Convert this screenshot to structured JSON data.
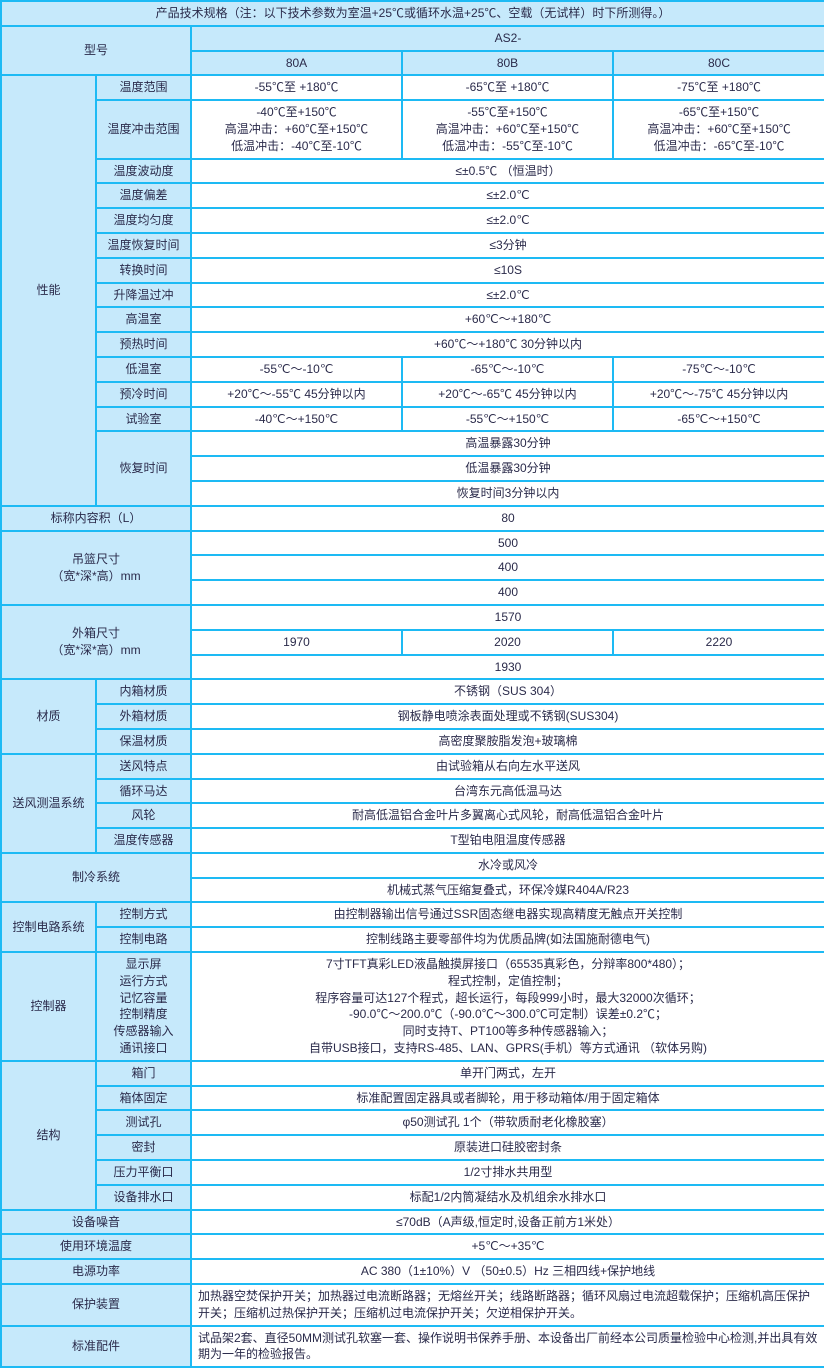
{
  "title": "产品技术规格（注：以下技术参数为室温+25℃或循环水温+25℃、空载（无试样）时下所测得。）",
  "model_label": "型号",
  "series": "AS2-",
  "models": [
    "80A",
    "80B",
    "80C"
  ],
  "perf_label": "性能",
  "rows": {
    "temp_range": {
      "label": "温度范围",
      "vals": [
        "-55℃至 +180℃",
        "-65℃至 +180℃",
        "-75℃至 +180℃"
      ]
    },
    "shock_range": {
      "label": "温度冲击范围",
      "vals": [
        "-40℃至+150℃\n高温冲击：+60℃至+150℃\n低温冲击：-40℃至-10℃",
        "-55℃至+150℃\n高温冲击：+60℃至+150℃\n低温冲击：-55℃至-10℃",
        "-65℃至+150℃\n高温冲击：+60℃至+150℃\n低温冲击：-65℃至-10℃"
      ]
    },
    "fluctuation": {
      "label": "温度波动度",
      "val": "≤±0.5℃ （恒温时）"
    },
    "deviation": {
      "label": "温度偏差",
      "val": "≤±2.0℃"
    },
    "uniformity": {
      "label": "温度均匀度",
      "val": "≤±2.0℃"
    },
    "recovery_time": {
      "label": "温度恢复时间",
      "val": "≤3分钟"
    },
    "switch_time": {
      "label": "转换时间",
      "val": "≤10S"
    },
    "overshoot": {
      "label": "升降温过冲",
      "val": "≤±2.0℃"
    },
    "high_chamber": {
      "label": "高温室",
      "val": "+60℃～+180℃"
    },
    "preheat": {
      "label": "预热时间",
      "val": "+60℃～+180℃ 30分钟以内"
    },
    "low_chamber": {
      "label": "低温室",
      "vals": [
        "-55℃～-10℃",
        "-65℃～-10℃",
        "-75℃～-10℃"
      ]
    },
    "precool": {
      "label": "预冷时间",
      "vals": [
        "+20℃～-55℃ 45分钟以内",
        "+20℃～-65℃ 45分钟以内",
        "+20℃～-75℃ 45分钟以内"
      ]
    },
    "test_chamber": {
      "label": "试验室",
      "vals": [
        "-40℃～+150℃",
        "-55℃～+150℃",
        "-65℃～+150℃"
      ]
    },
    "recover": {
      "label": "恢复时间",
      "vals": [
        "高温暴露30分钟",
        "低温暴露30分钟",
        "恢复时间3分钟以内"
      ]
    }
  },
  "nominal_vol": {
    "label": "标称内容积（L）",
    "val": "80"
  },
  "basket": {
    "label": "吊篮尺寸\n（宽*深*高）mm",
    "vals": [
      "500",
      "400",
      "400"
    ]
  },
  "outer": {
    "label": "外箱尺寸\n（宽*深*高）mm",
    "row1": "1570",
    "row2": [
      "1970",
      "2020",
      "2220"
    ],
    "row3": "1930"
  },
  "material": {
    "label": "材质",
    "inner": {
      "label": "内箱材质",
      "val": "不锈钢（SUS 304）"
    },
    "outer": {
      "label": "外箱材质",
      "val": "钢板静电喷涂表面处理或不锈钢(SUS304)"
    },
    "insul": {
      "label": "保温材质",
      "val": "高密度聚胺脂发泡+玻璃棉"
    }
  },
  "air": {
    "label": "送风测温系统",
    "feat": {
      "label": "送风特点",
      "val": "由试验箱从右向左水平送风"
    },
    "motor": {
      "label": "循环马达",
      "val": "台湾东元高低温马达"
    },
    "fan": {
      "label": "风轮",
      "val": "耐高低温铝合金叶片多翼离心式风轮，耐高低温铝合金叶片"
    },
    "sensor": {
      "label": "温度传感器",
      "val": "T型铂电阻温度传感器"
    }
  },
  "cooling": {
    "label": "制冷系统",
    "vals": [
      "水冷或风冷",
      "机械式蒸气压缩复叠式，环保冷媒R404A/R23"
    ]
  },
  "ctrl_circuit": {
    "label": "控制电路系统",
    "method": {
      "label": "控制方式",
      "val": "由控制器输出信号通过SSR固态继电器实现高精度无触点开关控制"
    },
    "circuit": {
      "label": "控制电路",
      "val": "控制线路主要零部件均为优质品牌(如法国施耐德电气)"
    }
  },
  "controller": {
    "label": "控制器",
    "sublabel": "显示屏\n运行方式\n记忆容量\n控制精度\n传感器输入\n通讯接口",
    "val": "7寸TFT真彩LED液晶触摸屏接口（65535真彩色，分辩率800*480）；\n程式控制，定值控制；\n程序容量可达127个程式，超长运行，每段999小时，最大32000次循环；\n-90.0℃～200.0℃（-90.0℃～300.0℃可定制）误差±0.2℃；\n同时支持T、PT100等多种传感器输入；\n自带USB接口，支持RS-485、LAN、GPRS(手机）等方式通讯 （软体另购)"
  },
  "structure": {
    "label": "结构",
    "door": {
      "label": "箱门",
      "val": "单开门两式，左开"
    },
    "fix": {
      "label": "箱体固定",
      "val": "标准配置固定器具或者脚轮，用于移动箱体/用于固定箱体"
    },
    "hole": {
      "label": "测试孔",
      "val": "φ50测试孔 1个（带软质耐老化橡胶塞）"
    },
    "seal": {
      "label": "密封",
      "val": "原装进口硅胶密封条"
    },
    "balance": {
      "label": "压力平衡口",
      "val": "1/2寸排水共用型"
    },
    "drain": {
      "label": "设备排水口",
      "val": "标配1/2内筒凝结水及机组余水排水口"
    }
  },
  "noise": {
    "label": "设备噪音",
    "val": "≤70dB（A声级,恒定时,设备正前方1米处）"
  },
  "env_temp": {
    "label": "使用环境温度",
    "val": "+5℃～+35℃"
  },
  "power": {
    "label": "电源功率",
    "val": "AC 380（1±10%）V （50±0.5）Hz 三相四线+保护地线"
  },
  "protection": {
    "label": "保护装置",
    "val": "加热器空焚保护开关；加热器过电流断路器；无熔丝开关；线路断路器；循环风扇过电流超载保护；压缩机高压保护开关；压缩机过热保护开关；压缩机过电流保护开关；欠逆相保护开关。"
  },
  "accessories": {
    "label": "标准配件",
    "val": "试品架2套、直径50MM测试孔软塞一套、操作说明书保养手册、本设备出厂前经本公司质量检验中心检测,并出具有效期为一年的检验报告。"
  }
}
